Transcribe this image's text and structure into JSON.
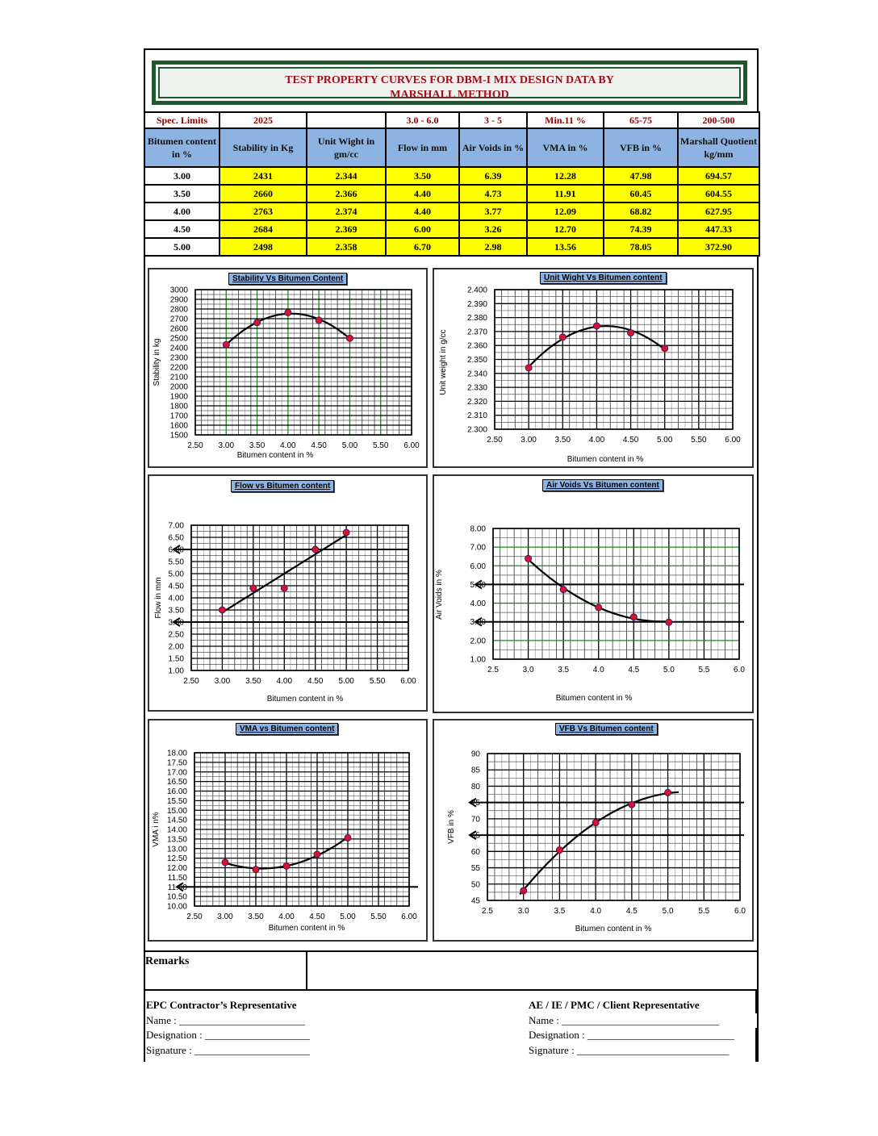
{
  "title": {
    "line1": "TEST PROPERTY CURVES FOR DBM-I MIX DESIGN DATA  BY",
    "line2": "MARSHALL METHOD"
  },
  "table": {
    "spec_row": [
      "Spec. Limits",
      "2025",
      "",
      "3.0 - 6.0",
      "3 - 5",
      "Min.11 %",
      "65-75",
      "200-500"
    ],
    "headers": [
      "Bitumen content in %",
      "Stability in Kg",
      "Unit Wight    in gm/cc",
      "Flow in mm",
      "Air Voids in %",
      "VMA in %",
      "VFB in %",
      "Marshall Quotient kg/mm"
    ],
    "rows": [
      [
        "3.00",
        "2431",
        "2.344",
        "3.50",
        "6.39",
        "12.28",
        "47.98",
        "694.57"
      ],
      [
        "3.50",
        "2660",
        "2.366",
        "4.40",
        "4.73",
        "11.91",
        "60.45",
        "604.55"
      ],
      [
        "4.00",
        "2763",
        "2.374",
        "4.40",
        "3.77",
        "12.09",
        "68.82",
        "627.95"
      ],
      [
        "4.50",
        "2684",
        "2.369",
        "6.00",
        "3.26",
        "12.70",
        "74.39",
        "447.33"
      ],
      [
        "5.00",
        "2498",
        "2.358",
        "6.70",
        "2.98",
        "13.56",
        "78.05",
        "372.90"
      ]
    ]
  },
  "chart_data": [
    {
      "type": "line",
      "title": "Stability Vs Bitumen Content",
      "xlabel": "Bitumen content in %",
      "ylabel": "Stability in kg",
      "x": [
        3.0,
        3.5,
        4.0,
        4.5,
        5.0
      ],
      "values": [
        2431,
        2660,
        2763,
        2684,
        2498
      ],
      "xlim": [
        2.5,
        6.0
      ],
      "ylim": [
        1500,
        3000
      ],
      "xticks": [
        "2.50",
        "3.00",
        "3.50",
        "4.00",
        "4.50",
        "5.00",
        "5.50",
        "6.00"
      ],
      "yticks": [
        "1500",
        "1600",
        "1700",
        "1800",
        "1900",
        "2000",
        "2100",
        "2200",
        "2300",
        "2400",
        "2500",
        "2600",
        "2700",
        "2800",
        "2900",
        "3000"
      ],
      "trend": "poly2",
      "trend_range": [
        3.0,
        5.0
      ],
      "spec_lines": [],
      "grid": true
    },
    {
      "type": "line",
      "title": "Unit Wight Vs Bitumen content",
      "xlabel": "Bitumen content in %",
      "ylabel": "Unit weight in g/cc",
      "x": [
        3.0,
        3.5,
        4.0,
        4.5,
        5.0
      ],
      "values": [
        2.344,
        2.366,
        2.374,
        2.369,
        2.358
      ],
      "xlim": [
        2.5,
        6.0
      ],
      "ylim": [
        2.3,
        2.4
      ],
      "xticks": [
        "2.50",
        "3.00",
        "3.50",
        "4.00",
        "4.50",
        "5.00",
        "5.50",
        "6.00"
      ],
      "yticks": [
        "2.300",
        "2.310",
        "2.320",
        "2.330",
        "2.340",
        "2.350",
        "2.360",
        "2.370",
        "2.380",
        "2.390",
        "2.400"
      ],
      "trend": "poly2",
      "trend_range": [
        3.0,
        5.0
      ],
      "spec_lines": [],
      "grid": true
    },
    {
      "type": "line",
      "title": "Flow vs Bitumen content",
      "xlabel": "Bitumen content in %",
      "ylabel": "Flow in mm",
      "x": [
        3.0,
        3.5,
        4.0,
        4.5,
        5.0
      ],
      "values": [
        3.5,
        4.4,
        4.4,
        6.0,
        6.7
      ],
      "xlim": [
        2.5,
        6.0
      ],
      "ylim": [
        1.0,
        7.0
      ],
      "xticks": [
        "2.50",
        "3.00",
        "3.50",
        "4.00",
        "4.50",
        "5.00",
        "5.50",
        "6.00"
      ],
      "yticks": [
        "1.00",
        "1.50",
        "2.00",
        "2.50",
        "3.00",
        "3.50",
        "4.00",
        "4.50",
        "5.00",
        "5.50",
        "6.00",
        "6.50",
        "7.00"
      ],
      "trend": "linear",
      "trend_range": [
        3.0,
        5.0
      ],
      "spec_lines": [
        3.0,
        6.0
      ],
      "grid": true
    },
    {
      "type": "line",
      "title": "Air Voids Vs Bitumen content",
      "xlabel": "Bitumen content in %",
      "ylabel": "Air Voids in %",
      "x": [
        3.0,
        3.5,
        4.0,
        4.5,
        5.0
      ],
      "values": [
        6.39,
        4.73,
        3.77,
        3.26,
        2.98
      ],
      "xlim": [
        2.5,
        6.0
      ],
      "ylim": [
        1.0,
        8.0
      ],
      "xticks": [
        "2.5",
        "3.0",
        "3.5",
        "4.0",
        "4.5",
        "5.0",
        "5.5",
        "6.0"
      ],
      "yticks": [
        "1.00",
        "2.00",
        "3.00",
        "4.00",
        "5.00",
        "6.00",
        "7.00",
        "8.00"
      ],
      "trend": "poly2",
      "trend_range": [
        3.0,
        5.0
      ],
      "spec_lines": [
        3.0,
        5.0
      ],
      "grid": true
    },
    {
      "type": "line",
      "title": "VMA vs Bitumen content",
      "xlabel": "Bitumen content in %",
      "ylabel": "VMA i n%",
      "x": [
        3.0,
        3.5,
        4.0,
        4.5,
        5.0
      ],
      "values": [
        12.28,
        11.91,
        12.09,
        12.7,
        13.56
      ],
      "xlim": [
        2.5,
        6.0
      ],
      "ylim": [
        10.0,
        18.0
      ],
      "xticks": [
        "2.50",
        "3.00",
        "3.50",
        "4.00",
        "4.50",
        "5.00",
        "5.50",
        "6.00"
      ],
      "yticks": [
        "10.00",
        "10.50",
        "11.00",
        "11.50",
        "12.00",
        "12.50",
        "13.00",
        "13.50",
        "14.00",
        "14.50",
        "15.00",
        "15.50",
        "16.00",
        "16.50",
        "17.00",
        "17.50",
        "18.00"
      ],
      "trend": "poly2",
      "trend_range": [
        3.0,
        5.0
      ],
      "spec_lines": [
        11.0
      ],
      "grid": true
    },
    {
      "type": "line",
      "title": "VFB Vs Bitumen content",
      "xlabel": "Bitumen content in %",
      "ylabel": "VFB in %",
      "x": [
        3.0,
        3.5,
        4.0,
        4.5,
        5.0
      ],
      "values": [
        47.98,
        60.45,
        68.82,
        74.39,
        78.05
      ],
      "xlim": [
        2.5,
        6.0
      ],
      "ylim": [
        45,
        90
      ],
      "xticks": [
        "2.5",
        "3.0",
        "3.5",
        "4.0",
        "4.5",
        "5.0",
        "5.5",
        "6.0"
      ],
      "yticks": [
        "45",
        "50",
        "55",
        "60",
        "65",
        "70",
        "75",
        "80",
        "85",
        "90"
      ],
      "trend": "poly2",
      "trend_range": [
        2.95,
        5.15
      ],
      "spec_lines": [
        65,
        75
      ],
      "grid": true
    }
  ],
  "remarks": {
    "label": "Remarks",
    "value": ""
  },
  "signatures": {
    "left": {
      "heading": "EPC Contractor’s Representative",
      "name": "Name : ________________________",
      "designation": "Designation : ____________________",
      "signature": "Signature : ______________________"
    },
    "right": {
      "heading": "AE / IE / PMC / Client Representative",
      "name": "Name : ______________________________",
      "designation": "Designation : ____________________________",
      "signature": "Signature : _____________________________"
    }
  },
  "colors": {
    "title_red": "#a0101a",
    "header_blue": "#8db3e2",
    "highlight_yellow": "#ffff00",
    "frame_green": "#1e5a2a",
    "marker_red": "#e0102a"
  }
}
